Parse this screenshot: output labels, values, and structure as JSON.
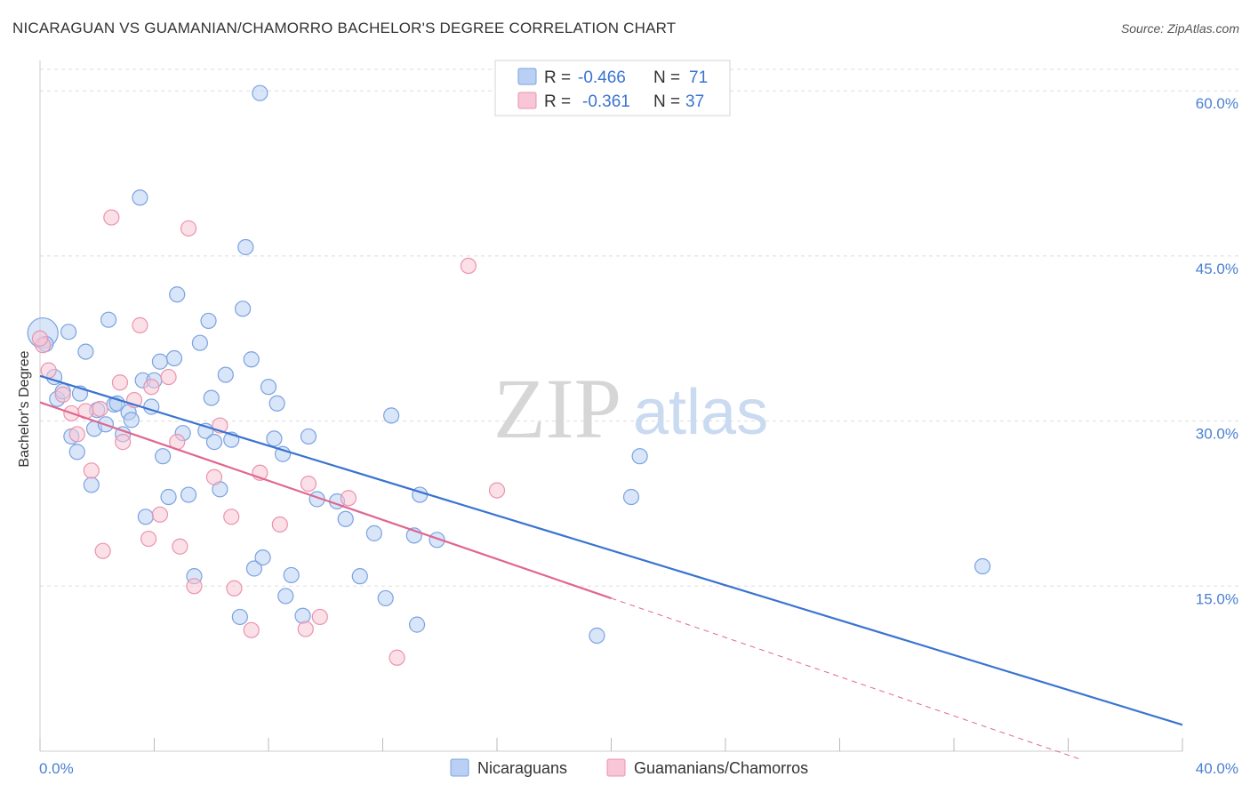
{
  "title": "NICARAGUAN VS GUAMANIAN/CHAMORRO BACHELOR'S DEGREE CORRELATION CHART",
  "source": "Source: ZipAtlas.com",
  "colors": {
    "blue_fill": "#b9d0f4",
    "blue_stroke": "#7aa3e0",
    "blue_line": "#3a74d0",
    "pink_fill": "#f8c6d6",
    "pink_stroke": "#eb93ad",
    "pink_line": "#e0678f",
    "grid": "#dddddd",
    "axis_text": "#4a7fd1"
  },
  "stats": {
    "r_label": "R =",
    "n_label": "N =",
    "rows": [
      {
        "series": "Nicaraguans",
        "r": "-0.466",
        "n": "71"
      },
      {
        "series": "Guamanians/Chamorros",
        "r": "-0.361",
        "n": "37"
      }
    ]
  },
  "watermark": {
    "zip": "ZIP",
    "atlas": "atlas"
  },
  "chart_data": {
    "type": "scatter",
    "title": "NICARAGUAN VS GUAMANIAN/CHAMORRO BACHELOR'S DEGREE CORRELATION CHART",
    "xlabel": "",
    "ylabel": "Bachelor's Degree",
    "xlim": [
      0,
      40
    ],
    "ylim": [
      0,
      60
    ],
    "x_tick_labels": [
      "0.0%",
      "40.0%"
    ],
    "y_tick_labels": [
      "15.0%",
      "30.0%",
      "45.0%",
      "60.0%"
    ],
    "y_ticks": [
      15,
      30,
      45,
      60
    ],
    "x_minor_ticks": [
      4,
      8,
      12,
      16,
      20,
      24,
      28,
      32,
      36
    ],
    "grid": true,
    "legend_position": "bottom-center",
    "series": [
      {
        "name": "Nicaraguans",
        "color": "blue",
        "trend": {
          "x": [
            0,
            40
          ],
          "y": [
            34.1,
            2.4
          ],
          "dashed_from": null
        },
        "points": [
          [
            0.1,
            38.0
          ],
          [
            0.2,
            37.0
          ],
          [
            0.5,
            34.0
          ],
          [
            0.6,
            32.0
          ],
          [
            0.8,
            32.7
          ],
          [
            1.0,
            38.1
          ],
          [
            1.1,
            28.6
          ],
          [
            1.3,
            27.2
          ],
          [
            1.4,
            32.5
          ],
          [
            1.6,
            36.3
          ],
          [
            1.8,
            24.2
          ],
          [
            1.9,
            29.3
          ],
          [
            2.0,
            31.0
          ],
          [
            2.3,
            29.7
          ],
          [
            2.4,
            39.2
          ],
          [
            2.6,
            31.5
          ],
          [
            2.7,
            31.6
          ],
          [
            2.9,
            28.8
          ],
          [
            3.1,
            30.8
          ],
          [
            3.2,
            30.1
          ],
          [
            3.5,
            50.3
          ],
          [
            3.6,
            33.7
          ],
          [
            3.7,
            21.3
          ],
          [
            3.9,
            31.3
          ],
          [
            4.0,
            33.7
          ],
          [
            4.2,
            35.4
          ],
          [
            4.3,
            26.8
          ],
          [
            4.5,
            23.1
          ],
          [
            4.7,
            35.7
          ],
          [
            4.8,
            41.5
          ],
          [
            5.0,
            28.9
          ],
          [
            5.2,
            23.3
          ],
          [
            5.4,
            15.9
          ],
          [
            5.6,
            37.1
          ],
          [
            5.8,
            29.1
          ],
          [
            5.9,
            39.1
          ],
          [
            6.0,
            32.1
          ],
          [
            6.1,
            28.1
          ],
          [
            6.3,
            23.8
          ],
          [
            6.5,
            34.2
          ],
          [
            6.7,
            28.3
          ],
          [
            7.0,
            12.2
          ],
          [
            7.1,
            40.2
          ],
          [
            7.2,
            45.8
          ],
          [
            7.4,
            35.6
          ],
          [
            7.5,
            16.6
          ],
          [
            7.7,
            59.8
          ],
          [
            7.8,
            17.6
          ],
          [
            8.0,
            33.1
          ],
          [
            8.2,
            28.4
          ],
          [
            8.3,
            31.6
          ],
          [
            8.5,
            27.0
          ],
          [
            8.6,
            14.1
          ],
          [
            8.8,
            16.0
          ],
          [
            9.2,
            12.3
          ],
          [
            9.4,
            28.6
          ],
          [
            9.7,
            22.9
          ],
          [
            10.4,
            22.7
          ],
          [
            10.7,
            21.1
          ],
          [
            11.2,
            15.9
          ],
          [
            11.7,
            19.8
          ],
          [
            12.1,
            13.9
          ],
          [
            12.3,
            30.5
          ],
          [
            13.1,
            19.6
          ],
          [
            13.2,
            11.5
          ],
          [
            13.3,
            23.3
          ],
          [
            13.9,
            19.2
          ],
          [
            19.5,
            10.5
          ],
          [
            20.7,
            23.1
          ],
          [
            21.0,
            26.8
          ],
          [
            33.0,
            16.8
          ]
        ]
      },
      {
        "name": "Guamanians/Chamorros",
        "color": "pink",
        "trend": {
          "x": [
            0,
            20
          ],
          "y": [
            31.7,
            13.9
          ],
          "dashed_to": {
            "x": 36.5,
            "y": -0.8
          }
        },
        "points": [
          [
            0.1,
            36.9
          ],
          [
            0.3,
            34.6
          ],
          [
            0.8,
            32.4
          ],
          [
            1.1,
            30.7
          ],
          [
            1.3,
            28.8
          ],
          [
            1.6,
            30.9
          ],
          [
            1.8,
            25.5
          ],
          [
            2.1,
            31.1
          ],
          [
            2.2,
            18.2
          ],
          [
            2.5,
            48.5
          ],
          [
            2.8,
            33.5
          ],
          [
            2.9,
            28.1
          ],
          [
            3.3,
            31.9
          ],
          [
            3.5,
            38.7
          ],
          [
            3.8,
            19.3
          ],
          [
            3.9,
            33.1
          ],
          [
            4.2,
            21.5
          ],
          [
            4.5,
            34.0
          ],
          [
            4.8,
            28.1
          ],
          [
            4.9,
            18.6
          ],
          [
            5.2,
            47.5
          ],
          [
            5.4,
            15.0
          ],
          [
            6.1,
            24.9
          ],
          [
            6.3,
            29.6
          ],
          [
            6.7,
            21.3
          ],
          [
            6.8,
            14.8
          ],
          [
            7.4,
            11.0
          ],
          [
            7.7,
            25.3
          ],
          [
            8.4,
            20.6
          ],
          [
            9.3,
            11.1
          ],
          [
            9.4,
            24.3
          ],
          [
            9.8,
            12.2
          ],
          [
            10.8,
            23.0
          ],
          [
            12.5,
            8.5
          ],
          [
            15.0,
            44.1
          ],
          [
            16.0,
            23.7
          ],
          [
            0.0,
            37.5
          ]
        ]
      }
    ]
  },
  "legend": {
    "items": [
      {
        "label": "Nicaraguans",
        "color": "blue"
      },
      {
        "label": "Guamanians/Chamorros",
        "color": "pink"
      }
    ]
  }
}
